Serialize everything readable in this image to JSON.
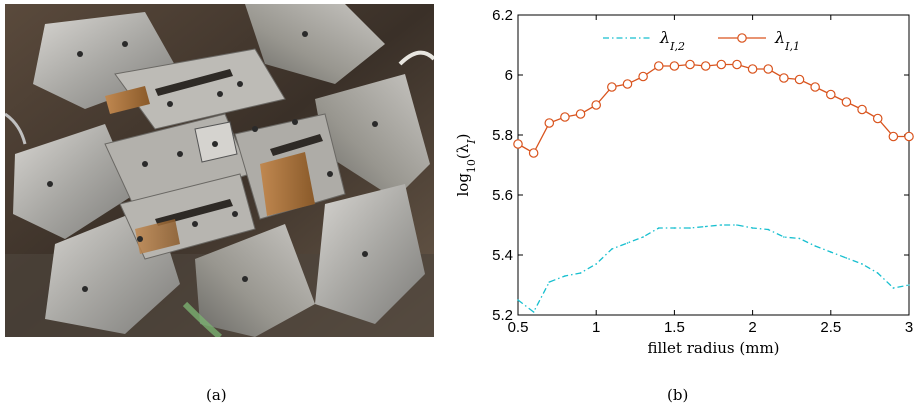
{
  "captions": {
    "a": "(a)",
    "b": "(b)"
  },
  "photo": {
    "description_icon": "machine-photo-icon"
  },
  "chart_data": {
    "type": "line",
    "xlabel": "fillet radius (mm)",
    "ylabel": "log10(λ_I)",
    "ylabel_main": "log",
    "ylabel_sub": "10",
    "ylabel_rest": "(λ",
    "ylabel_rest_sub": "I",
    "ylabel_end": ")",
    "xlim": [
      0.5,
      3.0
    ],
    "ylim": [
      5.2,
      6.2
    ],
    "xticks": [
      "0.5",
      "1",
      "1.5",
      "2",
      "2.5",
      "3"
    ],
    "yticks": [
      "5.2",
      "5.4",
      "5.6",
      "5.8",
      "6",
      "6.2"
    ],
    "legend_position": "top",
    "series": [
      {
        "name": "λ_{I,2}",
        "name_main": "λ",
        "name_sub": "I,2",
        "color": "#17bfcf",
        "style": "dash-dot",
        "marker": "none",
        "x": [
          0.5,
          0.6,
          0.7,
          0.8,
          0.9,
          1.0,
          1.1,
          1.2,
          1.3,
          1.4,
          1.5,
          1.6,
          1.7,
          1.8,
          1.9,
          2.0,
          2.1,
          2.2,
          2.3,
          2.4,
          2.5,
          2.6,
          2.7,
          2.8,
          2.9,
          3.0
        ],
        "y": [
          5.25,
          5.21,
          5.31,
          5.33,
          5.34,
          5.37,
          5.42,
          5.44,
          5.46,
          5.49,
          5.49,
          5.49,
          5.495,
          5.5,
          5.5,
          5.49,
          5.485,
          5.46,
          5.455,
          5.43,
          5.41,
          5.39,
          5.37,
          5.34,
          5.29,
          5.3
        ]
      },
      {
        "name": "λ_{I,1}",
        "name_main": "λ",
        "name_sub": "I,1",
        "color": "#d9541e",
        "style": "solid",
        "marker": "circle",
        "x": [
          0.5,
          0.6,
          0.7,
          0.8,
          0.9,
          1.0,
          1.1,
          1.2,
          1.3,
          1.4,
          1.5,
          1.6,
          1.7,
          1.8,
          1.9,
          2.0,
          2.1,
          2.2,
          2.3,
          2.4,
          2.5,
          2.6,
          2.7,
          2.8,
          2.9,
          3.0
        ],
        "y": [
          5.77,
          5.74,
          5.84,
          5.86,
          5.87,
          5.9,
          5.96,
          5.97,
          5.995,
          6.03,
          6.03,
          6.035,
          6.03,
          6.035,
          6.035,
          6.02,
          6.02,
          5.99,
          5.985,
          5.96,
          5.935,
          5.91,
          5.885,
          5.855,
          5.795,
          5.795
        ]
      }
    ]
  }
}
